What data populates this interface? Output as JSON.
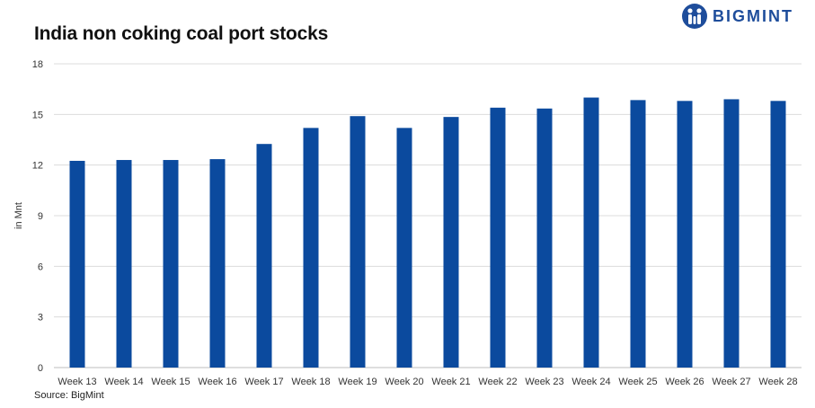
{
  "brand": {
    "name": "BIGMINT",
    "logo_icon": "bigmint-people-icon",
    "color": "#1e4d9b"
  },
  "source": "Source: BigMint",
  "chart_data": {
    "type": "bar",
    "title": "India non coking coal port stocks",
    "ylabel": "in Mnt",
    "xlabel": "",
    "ylim": [
      0,
      18
    ],
    "yticks": [
      0,
      3,
      6,
      9,
      12,
      15,
      18
    ],
    "grid": true,
    "bar_color": "#0b4a9e",
    "categories": [
      "Week 13",
      "Week 14",
      "Week 15",
      "Week 16",
      "Week 17",
      "Week 18",
      "Week 19",
      "Week 20",
      "Week 21",
      "Week 22",
      "Week 23",
      "Week 24",
      "Week 25",
      "Week 26",
      "Week 27",
      "Week 28"
    ],
    "values": [
      12.25,
      12.3,
      12.3,
      12.35,
      13.25,
      14.2,
      14.9,
      14.2,
      14.85,
      15.4,
      15.35,
      16.0,
      15.85,
      15.8,
      15.9,
      15.8
    ]
  }
}
